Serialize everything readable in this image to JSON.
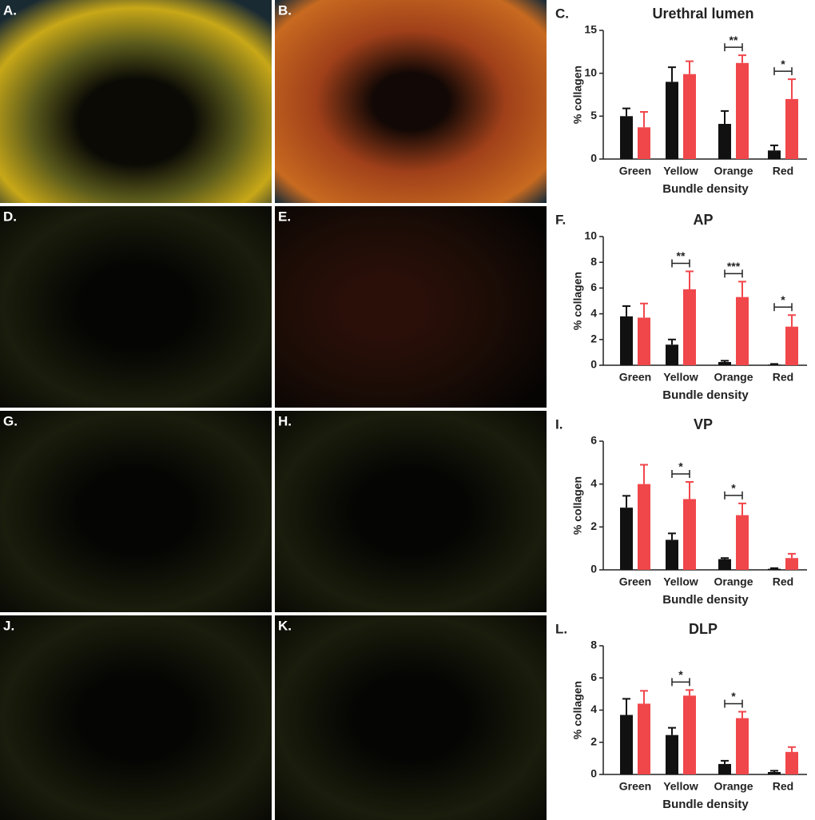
{
  "images": [
    {
      "label": "A."
    },
    {
      "label": "B."
    },
    {
      "label": "D."
    },
    {
      "label": "E."
    },
    {
      "label": "G."
    },
    {
      "label": "H."
    },
    {
      "label": "J."
    },
    {
      "label": "K."
    }
  ],
  "chart_data": [
    {
      "type": "bar",
      "panel_label": "C.",
      "title": "Urethral lumen",
      "x_label": "Bundle density",
      "y_label": "% collagen",
      "categories": [
        "Green",
        "Yellow",
        "Orange",
        "Red"
      ],
      "series": [
        {
          "color": "#111111",
          "values": [
            5.0,
            9.0,
            4.1,
            1.0
          ],
          "errors": [
            0.9,
            1.7,
            1.5,
            0.6
          ]
        },
        {
          "color": "#f0474b",
          "values": [
            3.7,
            9.9,
            11.2,
            7.0
          ],
          "errors": [
            1.8,
            1.5,
            0.9,
            2.3
          ]
        }
      ],
      "significance": [
        null,
        null,
        "**",
        "*"
      ],
      "ylim": [
        0,
        15
      ],
      "yticks": [
        0,
        5,
        10,
        15
      ]
    },
    {
      "type": "bar",
      "panel_label": "F.",
      "title": "AP",
      "x_label": "Bundle density",
      "y_label": "% collagen",
      "categories": [
        "Green",
        "Yellow",
        "Orange",
        "Red"
      ],
      "series": [
        {
          "color": "#111111",
          "values": [
            3.8,
            1.6,
            0.25,
            0.05
          ],
          "errors": [
            0.8,
            0.4,
            0.1,
            0.05
          ]
        },
        {
          "color": "#f0474b",
          "values": [
            3.7,
            5.9,
            5.3,
            3.0
          ],
          "errors": [
            1.1,
            1.4,
            1.2,
            0.9
          ]
        }
      ],
      "significance": [
        null,
        "**",
        "***",
        "*"
      ],
      "ylim": [
        0,
        10
      ],
      "yticks": [
        0,
        2,
        4,
        6,
        8,
        10
      ]
    },
    {
      "type": "bar",
      "panel_label": "I.",
      "title": "VP",
      "x_label": "Bundle density",
      "y_label": "% collagen",
      "categories": [
        "Green",
        "Yellow",
        "Orange",
        "Red"
      ],
      "series": [
        {
          "color": "#111111",
          "values": [
            2.9,
            1.4,
            0.5,
            0.05
          ],
          "errors": [
            0.55,
            0.3,
            0.05,
            0.03
          ]
        },
        {
          "color": "#f0474b",
          "values": [
            4.0,
            3.3,
            2.55,
            0.55
          ],
          "errors": [
            0.9,
            0.8,
            0.55,
            0.2
          ]
        }
      ],
      "significance": [
        null,
        "*",
        "*",
        null
      ],
      "ylim": [
        0,
        6
      ],
      "yticks": [
        0,
        2,
        4,
        6
      ]
    },
    {
      "type": "bar",
      "panel_label": "L.",
      "title": "DLP",
      "x_label": "Bundle density",
      "y_label": "% collagen",
      "categories": [
        "Green",
        "Yellow",
        "Orange",
        "Red"
      ],
      "series": [
        {
          "color": "#111111",
          "values": [
            3.7,
            2.45,
            0.65,
            0.15
          ],
          "errors": [
            1.0,
            0.45,
            0.2,
            0.08
          ]
        },
        {
          "color": "#f0474b",
          "values": [
            4.4,
            4.9,
            3.5,
            1.4
          ],
          "errors": [
            0.8,
            0.35,
            0.4,
            0.3
          ]
        }
      ],
      "significance": [
        null,
        "*",
        "*",
        null
      ],
      "ylim": [
        0,
        8
      ],
      "yticks": [
        0,
        2,
        4,
        6,
        8
      ]
    }
  ]
}
